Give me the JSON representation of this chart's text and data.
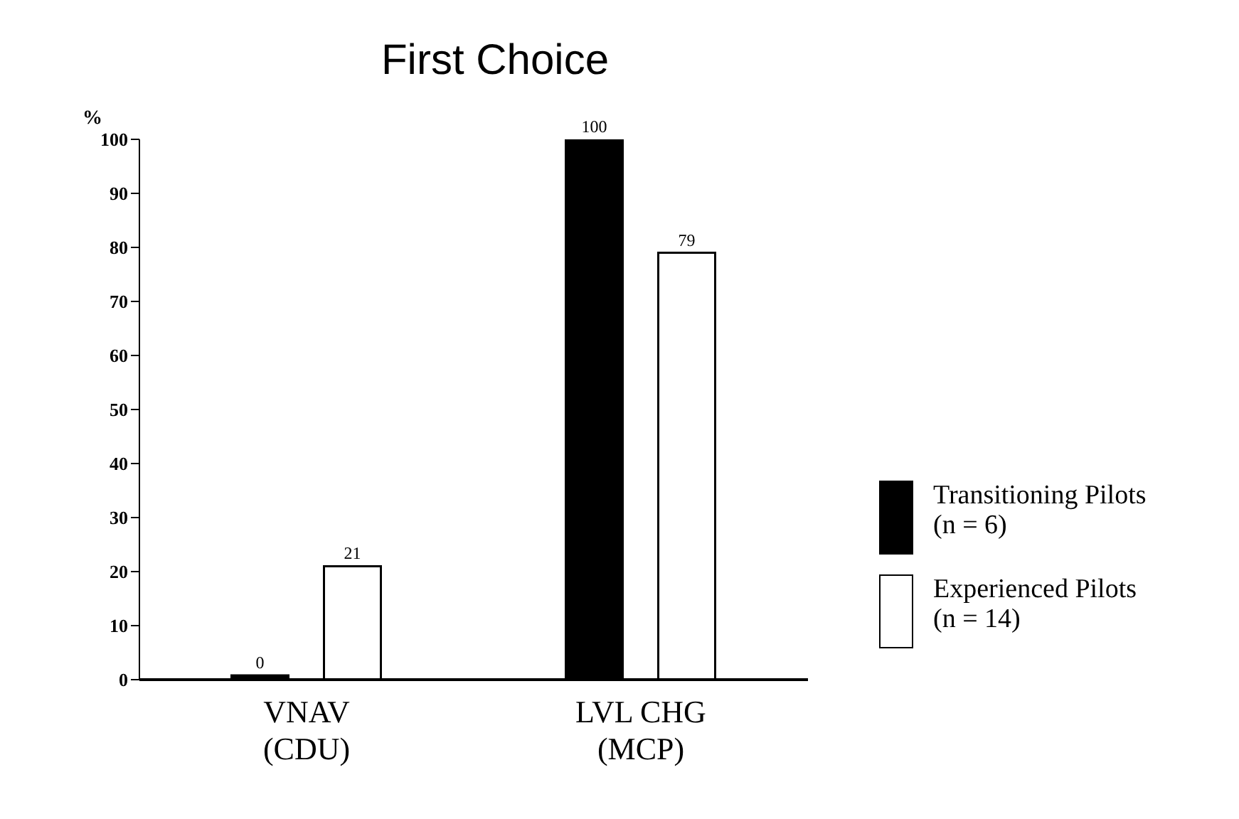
{
  "chart_data": {
    "type": "bar",
    "title": "First Choice",
    "ylabel": "%",
    "categories": [
      "VNAV\n(CDU)",
      "LVL CHG\n(MCP)"
    ],
    "series": [
      {
        "name": "Transitioning Pilots\n(n = 6)",
        "color": "#000000",
        "values": [
          0,
          100
        ]
      },
      {
        "name": "Experienced Pilots\n(n = 14)",
        "color": "#ffffff",
        "values": [
          21,
          79
        ]
      }
    ],
    "ylim": [
      0,
      100
    ],
    "yticks": [
      0,
      10,
      20,
      30,
      40,
      50,
      60,
      70,
      80,
      90,
      100
    ],
    "data_labels": true,
    "grid": false,
    "legend": "right"
  }
}
